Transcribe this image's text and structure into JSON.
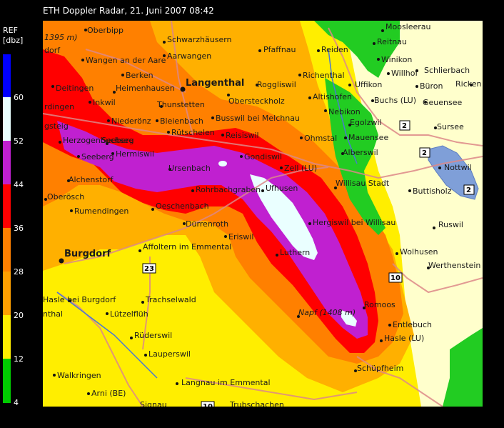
{
  "title": "ETH Doppler Radar, 21. Juni 2007 08:42",
  "legend": {
    "unit_line1": "REF",
    "unit_line2": "[dbz]",
    "ticks": [
      "60",
      "52",
      "44",
      "36",
      "28",
      "20",
      "12",
      "4"
    ],
    "colors": {
      "above_60": "#0000ff",
      "52_60": "#ffffff",
      "44_52": "#c020d0",
      "36_44": "#ff0000",
      "28_36": "#ff8000",
      "20_28": "#ffa000",
      "12_20": "#ffee00",
      "4_12": "#00cc00"
    }
  },
  "places": {
    "oberbipp": "Oberbipp",
    "schwarzhausern": "Schwarzhäusern",
    "wangen": "Wangen an der Aare",
    "aarwangen": "Aarwangen",
    "berken": "Berken",
    "langenthal": "Langenthal",
    "pfaffnau": "Pfaffnau",
    "reiden": "Reiden",
    "richenthal": "Richenthal",
    "reitnau": "Reitnau",
    "moosleerau": "Moosleerau",
    "winikon": "Winikon",
    "schlierbach": "Schlierbach",
    "willhof": "Willhof",
    "bueron": "Büron",
    "ricken": "Ricken",
    "geuensee": "Geuensee",
    "heimenhausen": "Heimenhausen",
    "roggliswil": "Roggliswil",
    "uffikon": "Uffikon",
    "buchs": "Buchs (LU)",
    "deitingen": "Deitingen",
    "inkwil": "Inkwil",
    "obersteckholz": "Obersteckholz",
    "altishofen": "Altishofen",
    "nebikon": "Nebikon",
    "egolzwil": "Egolzwil",
    "sursee": "Sursee",
    "herdingen": "rdingen",
    "niederoenz": "Niederönz",
    "thunstetten": "Thunstetten",
    "bleienbach": "Bleienbach",
    "busswil": "Busswil bei Melchnau",
    "mauensee": "Mauensee",
    "gsteig": "gsteig",
    "herzogenbuchsee": "Herzogenbuchsee",
    "ruetschelen": "Rütschelen",
    "reisiswil": "Reisiswil",
    "ohmstal": "Ohmstal",
    "alberswil": "Alberswil",
    "nottwil": "Nottwil",
    "seeberg": "Seeberg",
    "heimiswil_top": "Hermiswil",
    "gondiswil": "Gondiswil",
    "ursenbach": "Ursenbach",
    "zell": "Zell (LU)",
    "willisau": "Willisau Stadt",
    "buttisholz": "Buttisholz",
    "alchenstorf": "Alchenstorf",
    "oberoesch": "Oberösch",
    "rohrbachgraben": "Rohrbachgraben",
    "ufhusen": "Ufhusen",
    "rumendingen": "Rumendingen",
    "oeschenbach": "Oeschenbach",
    "hergiswil": "Hergiswil bei Willisau",
    "ruswil": "Ruswil",
    "duerrenroth": "Dürrenroth",
    "eriswil": "Eriswil",
    "burgdorf": "Burgdorf",
    "affoltern": "Affoltern im Emmental",
    "luthern": "Luthern",
    "wolhusen": "Wolhusen",
    "werthenstein": "Werthenstein",
    "hasle_burgdorf": "Hasle bei Burgdorf",
    "trachselwald": "Trachselwald",
    "romoos": "Romoos",
    "lauenthal": "nthal",
    "luetzelflueh": "Lützelflüh",
    "napf": "Napf (1408 m)",
    "entlebuch": "Entlebuch",
    "hasle_lu": "Hasle (LU)",
    "ruederswil": "Rüderswil",
    "lauperswil": "Lauperswil",
    "schuepfheim": "Schüpfheim",
    "walkringen": "Walkringen",
    "langnau": "Langnau im Emmental",
    "arni": "Arni (BE)",
    "signau": "Signau",
    "trubschachen": "Trubschachen",
    "weissenstein": "1395 m)",
    "attiswil": "dorf"
  },
  "roads": {
    "r2a": "2",
    "r2b": "2",
    "r2c": "2",
    "r10": "10",
    "r23": "23",
    "r10b": "10"
  }
}
